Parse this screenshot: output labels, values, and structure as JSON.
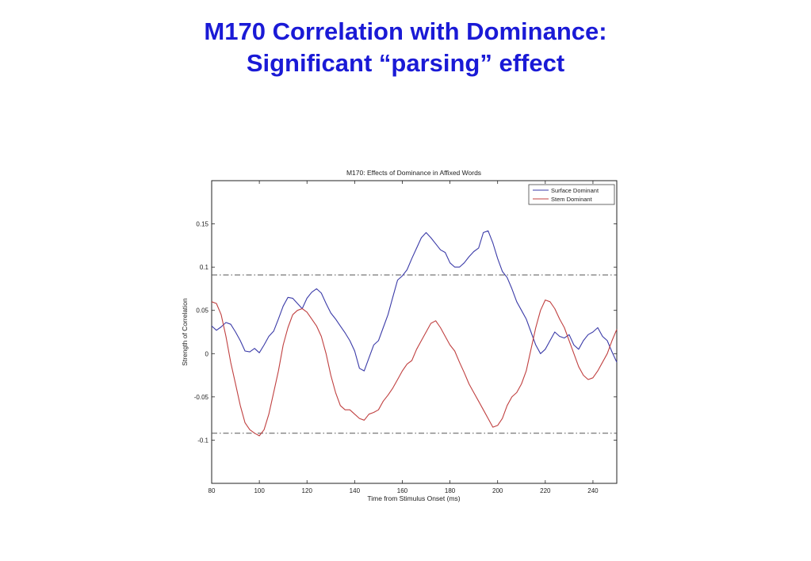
{
  "slide": {
    "title_line1": "M170 Correlation with Dominance:",
    "title_line2": "Significant “parsing” effect"
  },
  "colors": {
    "title": "#1a1ad6",
    "surface": "#3b3ba8",
    "stem": "#c04040",
    "threshold": "#555555"
  },
  "chart_data": {
    "type": "line",
    "title": "M170: Effects of Dominance in Affixed Words",
    "xlabel": "Time from Stimulus Onset (ms)",
    "ylabel": "Strength of Correlation",
    "xlim": [
      80,
      250
    ],
    "ylim": [
      -0.15,
      0.2
    ],
    "xticks": [
      80,
      100,
      120,
      140,
      160,
      180,
      200,
      220,
      240
    ],
    "yticks": [
      -0.1,
      -0.05,
      0,
      0.05,
      0.1,
      0.15
    ],
    "ytick_labels": [
      "-0.1",
      "-0.05",
      "0",
      "0.05",
      "0.1",
      "0.15"
    ],
    "grid": false,
    "legend_position": "top-right",
    "thresholds": [
      0.091,
      -0.092
    ],
    "series": [
      {
        "name": "Surface Dominant",
        "color": "#3b3ba8",
        "x": [
          80,
          82,
          84,
          86,
          88,
          90,
          92,
          94,
          96,
          98,
          100,
          102,
          104,
          106,
          108,
          110,
          112,
          114,
          116,
          118,
          120,
          122,
          124,
          126,
          128,
          130,
          132,
          134,
          136,
          138,
          140,
          142,
          144,
          146,
          148,
          150,
          152,
          154,
          156,
          158,
          160,
          162,
          164,
          166,
          168,
          170,
          172,
          174,
          176,
          178,
          180,
          182,
          184,
          186,
          188,
          190,
          192,
          194,
          196,
          198,
          200,
          202,
          204,
          206,
          208,
          210,
          212,
          214,
          216,
          218,
          220,
          222,
          224,
          226,
          228,
          230,
          232,
          234,
          236,
          238,
          240,
          242,
          244,
          246,
          248,
          250
        ],
        "y": [
          0.032,
          0.027,
          0.031,
          0.036,
          0.034,
          0.025,
          0.015,
          0.003,
          0.002,
          0.006,
          0.001,
          0.01,
          0.02,
          0.026,
          0.04,
          0.055,
          0.065,
          0.064,
          0.058,
          0.052,
          0.064,
          0.071,
          0.075,
          0.07,
          0.058,
          0.047,
          0.04,
          0.032,
          0.024,
          0.015,
          0.003,
          -0.017,
          -0.02,
          -0.005,
          0.01,
          0.015,
          0.03,
          0.045,
          0.065,
          0.085,
          0.09,
          0.097,
          0.11,
          0.122,
          0.134,
          0.14,
          0.134,
          0.127,
          0.12,
          0.117,
          0.105,
          0.1,
          0.1,
          0.105,
          0.112,
          0.118,
          0.122,
          0.14,
          0.142,
          0.128,
          0.11,
          0.095,
          0.088,
          0.075,
          0.06,
          0.05,
          0.04,
          0.025,
          0.01,
          0.0,
          0.005,
          0.015,
          0.025,
          0.02,
          0.018,
          0.022,
          0.01,
          0.005,
          0.015,
          0.022,
          0.025,
          0.03,
          0.02,
          0.015,
          0.002,
          -0.01
        ]
      },
      {
        "name": "Stem Dominant",
        "color": "#c04040",
        "x": [
          80,
          82,
          84,
          86,
          88,
          90,
          92,
          94,
          96,
          98,
          100,
          102,
          104,
          106,
          108,
          110,
          112,
          114,
          116,
          118,
          120,
          122,
          124,
          126,
          128,
          130,
          132,
          134,
          136,
          138,
          140,
          142,
          144,
          146,
          148,
          150,
          152,
          154,
          156,
          158,
          160,
          162,
          164,
          166,
          168,
          170,
          172,
          174,
          176,
          178,
          180,
          182,
          184,
          186,
          188,
          190,
          192,
          194,
          196,
          198,
          200,
          202,
          204,
          206,
          208,
          210,
          212,
          214,
          216,
          218,
          220,
          222,
          224,
          226,
          228,
          230,
          232,
          234,
          236,
          238,
          240,
          242,
          244,
          246,
          248,
          250
        ],
        "y": [
          0.06,
          0.058,
          0.045,
          0.02,
          -0.01,
          -0.035,
          -0.06,
          -0.08,
          -0.088,
          -0.092,
          -0.095,
          -0.088,
          -0.07,
          -0.045,
          -0.02,
          0.01,
          0.03,
          0.045,
          0.05,
          0.052,
          0.048,
          0.04,
          0.032,
          0.02,
          0.0,
          -0.025,
          -0.045,
          -0.06,
          -0.065,
          -0.065,
          -0.07,
          -0.075,
          -0.077,
          -0.07,
          -0.068,
          -0.065,
          -0.055,
          -0.048,
          -0.04,
          -0.03,
          -0.02,
          -0.012,
          -0.008,
          0.005,
          0.015,
          0.025,
          0.035,
          0.038,
          0.03,
          0.02,
          0.01,
          0.003,
          -0.01,
          -0.022,
          -0.035,
          -0.045,
          -0.055,
          -0.065,
          -0.075,
          -0.085,
          -0.083,
          -0.075,
          -0.06,
          -0.05,
          -0.045,
          -0.035,
          -0.02,
          0.005,
          0.03,
          0.05,
          0.062,
          0.06,
          0.052,
          0.04,
          0.03,
          0.015,
          0.0,
          -0.015,
          -0.025,
          -0.03,
          -0.028,
          -0.02,
          -0.01,
          0.0,
          0.015,
          0.028
        ]
      }
    ]
  }
}
